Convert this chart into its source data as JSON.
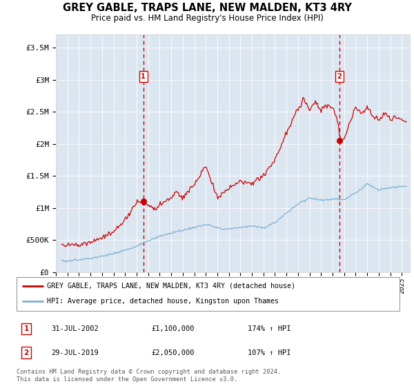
{
  "title": "GREY GABLE, TRAPS LANE, NEW MALDEN, KT3 4RY",
  "subtitle": "Price paid vs. HM Land Registry's House Price Index (HPI)",
  "ylabel_ticks": [
    "£0",
    "£500K",
    "£1M",
    "£1.5M",
    "£2M",
    "£2.5M",
    "£3M",
    "£3.5M"
  ],
  "ylabel_values": [
    0,
    500000,
    1000000,
    1500000,
    2000000,
    2500000,
    3000000,
    3500000
  ],
  "ylim": [
    0,
    3700000
  ],
  "xlim_start": 1995.3,
  "xlim_end": 2025.7,
  "background_color": "#dce6f1",
  "red_line_color": "#cc0000",
  "blue_line_color": "#7bafd4",
  "dashed_line_color": "#cc0000",
  "marker1_x": 2002.58,
  "marker1_y": 1100000,
  "marker2_x": 2019.58,
  "marker2_y": 2050000,
  "sale1_date": "31-JUL-2002",
  "sale1_price": "£1,100,000",
  "sale1_hpi": "174% ↑ HPI",
  "sale2_date": "29-JUL-2019",
  "sale2_price": "£2,050,000",
  "sale2_hpi": "107% ↑ HPI",
  "legend1": "GREY GABLE, TRAPS LANE, NEW MALDEN, KT3 4RY (detached house)",
  "legend2": "HPI: Average price, detached house, Kingston upon Thames",
  "footer": "Contains HM Land Registry data © Crown copyright and database right 2024.\nThis data is licensed under the Open Government Licence v3.0."
}
